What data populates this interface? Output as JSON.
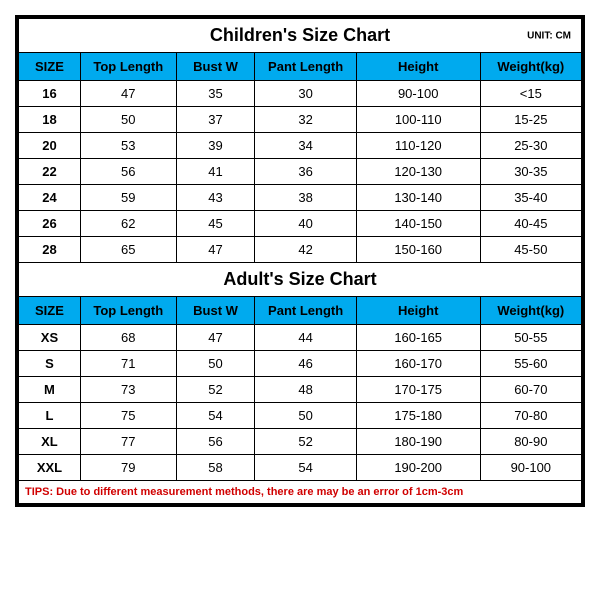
{
  "unit_label": "UNIT: CM",
  "columns": [
    "SIZE",
    "Top Length",
    "Bust W",
    "Pant Length",
    "Height",
    "Weight(kg)"
  ],
  "children": {
    "title": "Children's Size Chart",
    "rows": [
      [
        "16",
        "47",
        "35",
        "30",
        "90-100",
        "<15"
      ],
      [
        "18",
        "50",
        "37",
        "32",
        "100-110",
        "15-25"
      ],
      [
        "20",
        "53",
        "39",
        "34",
        "110-120",
        "25-30"
      ],
      [
        "22",
        "56",
        "41",
        "36",
        "120-130",
        "30-35"
      ],
      [
        "24",
        "59",
        "43",
        "38",
        "130-140",
        "35-40"
      ],
      [
        "26",
        "62",
        "45",
        "40",
        "140-150",
        "40-45"
      ],
      [
        "28",
        "65",
        "47",
        "42",
        "150-160",
        "45-50"
      ]
    ]
  },
  "adult": {
    "title": "Adult's Size Chart",
    "rows": [
      [
        "XS",
        "68",
        "47",
        "44",
        "160-165",
        "50-55"
      ],
      [
        "S",
        "71",
        "50",
        "46",
        "160-170",
        "55-60"
      ],
      [
        "M",
        "73",
        "52",
        "48",
        "170-175",
        "60-70"
      ],
      [
        "L",
        "75",
        "54",
        "50",
        "175-180",
        "70-80"
      ],
      [
        "XL",
        "77",
        "56",
        "52",
        "180-190",
        "80-90"
      ],
      [
        "XXL",
        "79",
        "58",
        "54",
        "190-200",
        "90-100"
      ]
    ]
  },
  "tips": "TIPS: Due to different measurement methods, there are may be an error of 1cm-3cm",
  "styling": {
    "header_bg": "#00aaee",
    "border_color": "#000000",
    "background": "#ffffff",
    "tips_color": "#d00000",
    "title_fontsize": 18,
    "cell_fontsize": 13,
    "unit_fontsize": 10,
    "tips_fontsize": 11,
    "outer_border_width": 3
  }
}
